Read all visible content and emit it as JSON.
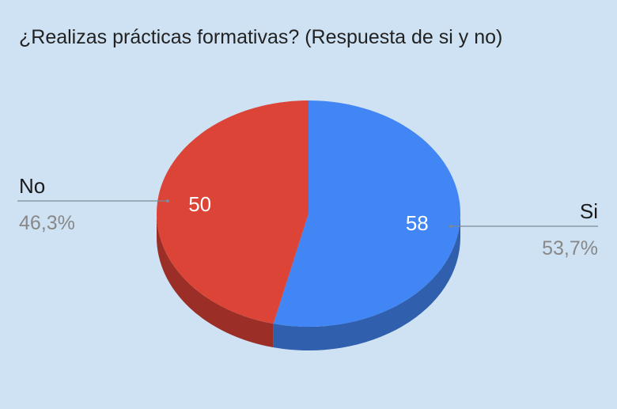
{
  "chart_data": {
    "type": "pie",
    "style": "3d",
    "title": "¿Realizas prácticas formativas? (Respuesta de si y no)",
    "slices": [
      {
        "label": "Si",
        "value": 58,
        "percent": "53,7%",
        "color": "#4285f4",
        "side_color": "#2f5fad"
      },
      {
        "label": "No",
        "value": 50,
        "percent": "46,3%",
        "color": "#db4437",
        "side_color": "#9b2f27"
      }
    ],
    "background": "#cfe2f3",
    "legend": "labeled-callouts"
  }
}
